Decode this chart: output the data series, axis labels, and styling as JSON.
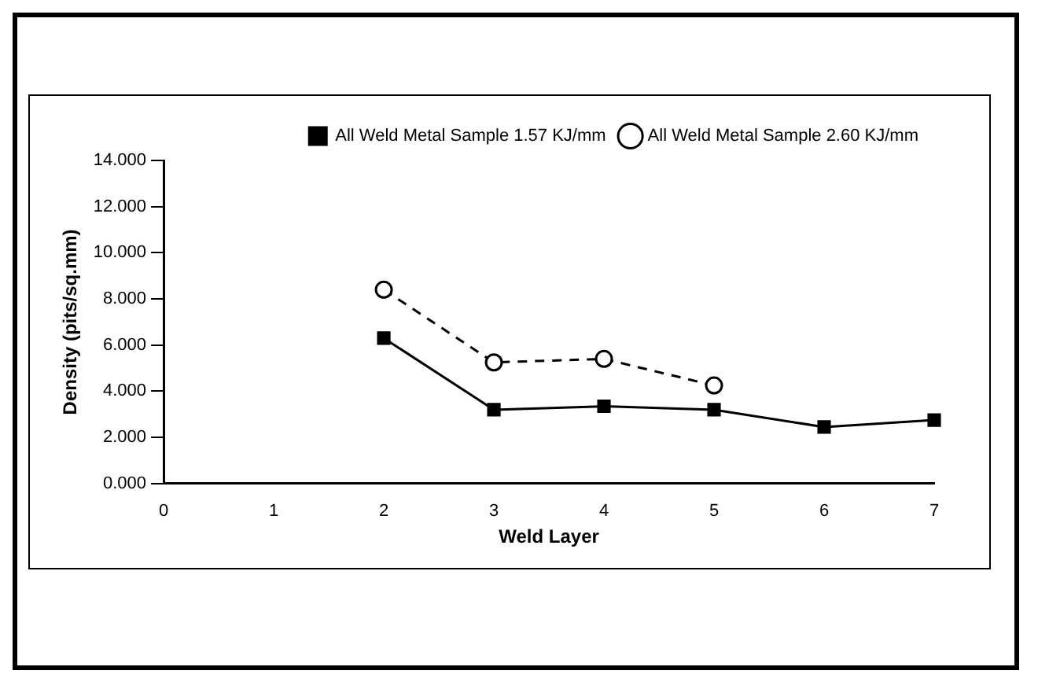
{
  "chart_data": {
    "type": "line",
    "xlabel": "Weld Layer",
    "ylabel": "Density (pits/sq.mm)",
    "x": [
      2,
      3,
      4,
      5,
      6,
      7
    ],
    "series": [
      {
        "name": "All Weld Metal Sample 1.57 KJ/mm",
        "color": "#000000",
        "values": [
          6.3,
          3.2,
          3.35,
          3.2,
          2.45,
          2.75
        ],
        "marker": "square",
        "line_style": "solid"
      },
      {
        "name": "All Weld Metal Sample 2.60 KJ/mm",
        "color": "#000000",
        "values": [
          8.4,
          5.25,
          5.4,
          4.25,
          null,
          null
        ],
        "marker": "circle",
        "line_style": "dashed"
      }
    ],
    "xlim": [
      0,
      7
    ],
    "xticks": [
      0,
      1,
      2,
      3,
      4,
      5,
      6,
      7
    ],
    "ylim": [
      0,
      14
    ],
    "yticks": [
      {
        "value": 0,
        "label": "0.000"
      },
      {
        "value": 2,
        "label": "2.000"
      },
      {
        "value": 4,
        "label": "4.000"
      },
      {
        "value": 6,
        "label": "6.000"
      },
      {
        "value": 8,
        "label": "8.000"
      },
      {
        "value": 10,
        "label": "10.000"
      },
      {
        "value": 12,
        "label": "12.000"
      },
      {
        "value": 14,
        "label": "14.000"
      }
    ],
    "grid": false,
    "legend": "top right"
  }
}
